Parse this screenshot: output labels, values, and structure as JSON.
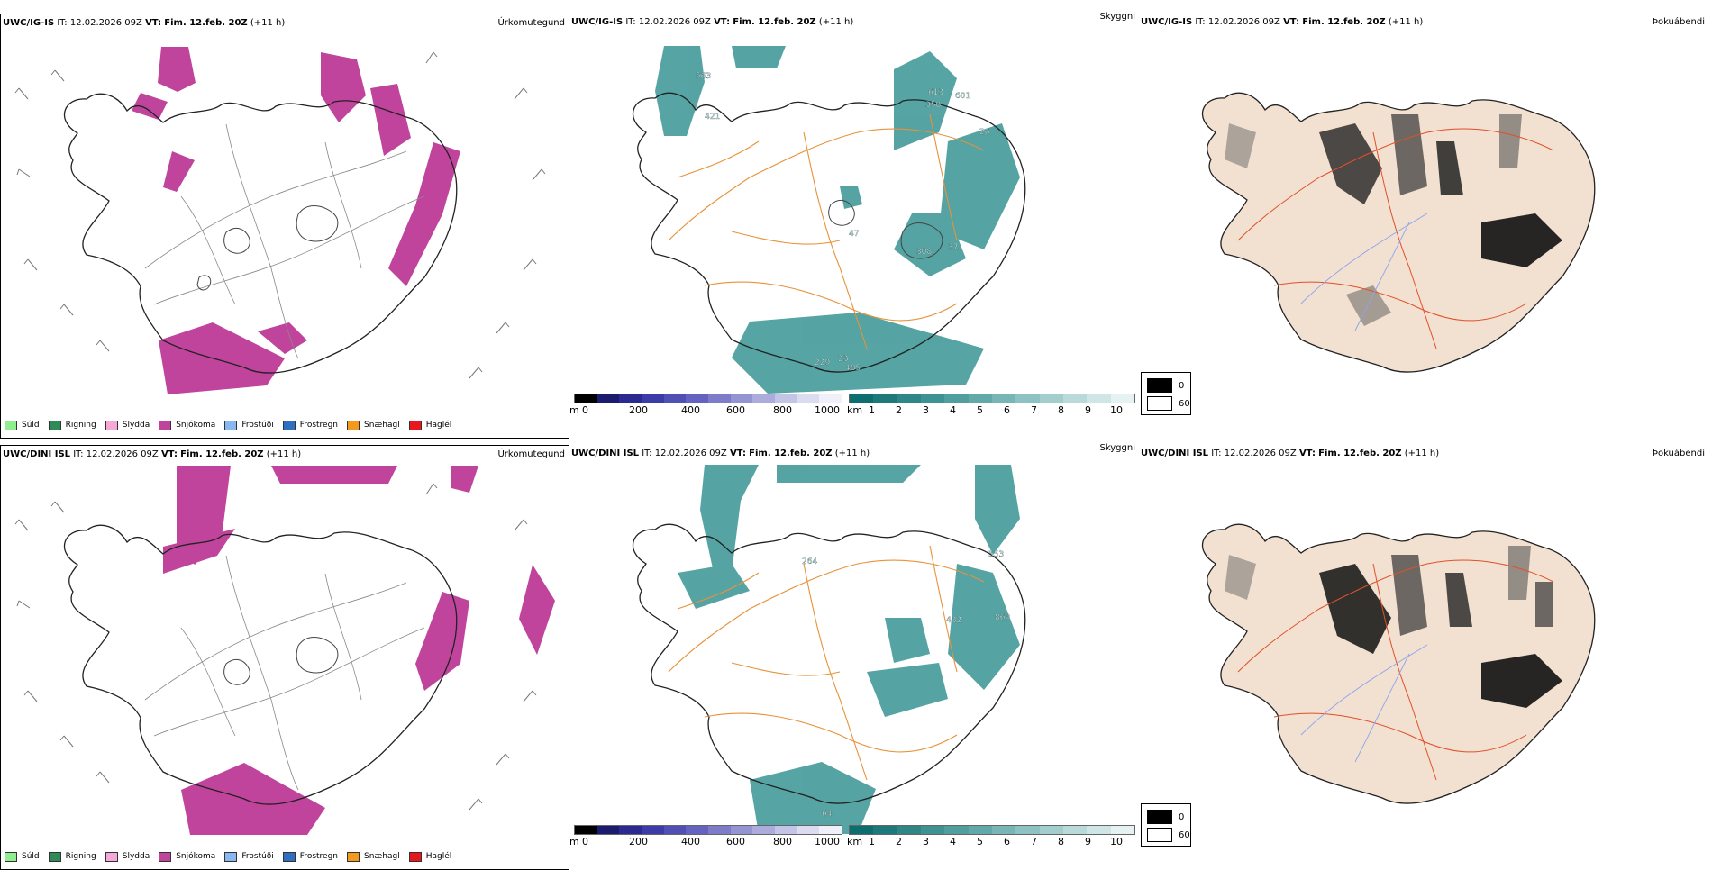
{
  "panels": [
    {
      "model": "UWC/IG-IS",
      "it_label": "IT:",
      "it_value": "12.02.2026 09Z",
      "vt_label": "VT:",
      "vt_value": "Fim. 12.feb. 20Z",
      "lead": "(+11 h)",
      "title": "Úrkomutegund"
    },
    {
      "model": "UWC/IG-IS",
      "it_label": "IT:",
      "it_value": "12.02.2026 09Z",
      "vt_label": "VT:",
      "vt_value": "Fim. 12.feb. 20Z",
      "lead": "(+11 h)",
      "title": "Skyggni"
    },
    {
      "model": "UWC/IG-IS",
      "it_label": "IT:",
      "it_value": "12.02.2026 09Z",
      "vt_label": "VT:",
      "vt_value": "Fim. 12.feb. 20Z",
      "lead": "(+11 h)",
      "title": "Þokuábendi"
    },
    {
      "model": "UWC/DINI ISL",
      "it_label": "IT:",
      "it_value": "12.02.2026 09Z",
      "vt_label": "VT:",
      "vt_value": "Fim. 12.feb. 20Z",
      "lead": "(+11 h)",
      "title": "Úrkomutegund"
    },
    {
      "model": "UWC/DINI ISL",
      "it_label": "IT:",
      "it_value": "12.02.2026 09Z",
      "vt_label": "VT:",
      "vt_value": "Fim. 12.feb. 20Z",
      "lead": "(+11 h)",
      "title": "Skyggni"
    },
    {
      "model": "UWC/DINI ISL",
      "it_label": "IT:",
      "it_value": "12.02.2026 09Z",
      "vt_label": "VT:",
      "vt_value": "Fim. 12.feb. 20Z",
      "lead": "(+11 h)",
      "title": "Þokuábendi"
    }
  ],
  "precip_legend": [
    {
      "label": "Súld",
      "color": "#90ee90"
    },
    {
      "label": "Rigning",
      "color": "#2e8b57"
    },
    {
      "label": "Slydda",
      "color": "#f4a9d8"
    },
    {
      "label": "Snjókoma",
      "color": "#c0449c"
    },
    {
      "label": "Frostúði",
      "color": "#87b8f0"
    },
    {
      "label": "Frostregn",
      "color": "#2f6fc0"
    },
    {
      "label": "Snæhagl",
      "color": "#f29a1e"
    },
    {
      "label": "Haglél",
      "color": "#e8161e"
    }
  ],
  "elevation_scale": {
    "unit": "m",
    "ticks": [
      "0",
      "200",
      "400",
      "600",
      "800",
      "1000"
    ],
    "colors": [
      "#000000",
      "#1c1c6e",
      "#2a2a90",
      "#3c3ca8",
      "#5050b4",
      "#6464c0",
      "#7c7cc8",
      "#9494d2",
      "#acacdc",
      "#c4c4e6",
      "#dcdcf0",
      "#f0f0fa"
    ]
  },
  "visibility_scale": {
    "unit": "km",
    "ticks": [
      "1",
      "2",
      "3",
      "4",
      "5",
      "6",
      "7",
      "8",
      "9",
      "10"
    ],
    "colors": [
      "#0c6e6e",
      "#1e7a7a",
      "#2e8686",
      "#3e9292",
      "#509e9e",
      "#62aaaa",
      "#78b6b6",
      "#8ec2c2",
      "#a4cece",
      "#badada",
      "#d0e6e6",
      "#e6f2f2"
    ]
  },
  "fog_legend": [
    {
      "label": "0",
      "color": "#000000"
    },
    {
      "label": "60",
      "color": "#ffffff"
    }
  ],
  "visibility_labels_top": [
    "563",
    "421",
    "613",
    "601",
    "358",
    "26",
    "308",
    "37",
    "47",
    "229",
    "23",
    "485",
    "487"
  ],
  "visibility_labels_bottom": [
    "264",
    "553",
    "432",
    "869",
    "64"
  ],
  "colors": {
    "snow": "#c0449c",
    "visibility": "#1e8585",
    "roads": "#e8923a",
    "fog_land": "#f2e0d0",
    "fog_roads": "#e0502a",
    "fog_rivers": "#8aa4f0"
  }
}
